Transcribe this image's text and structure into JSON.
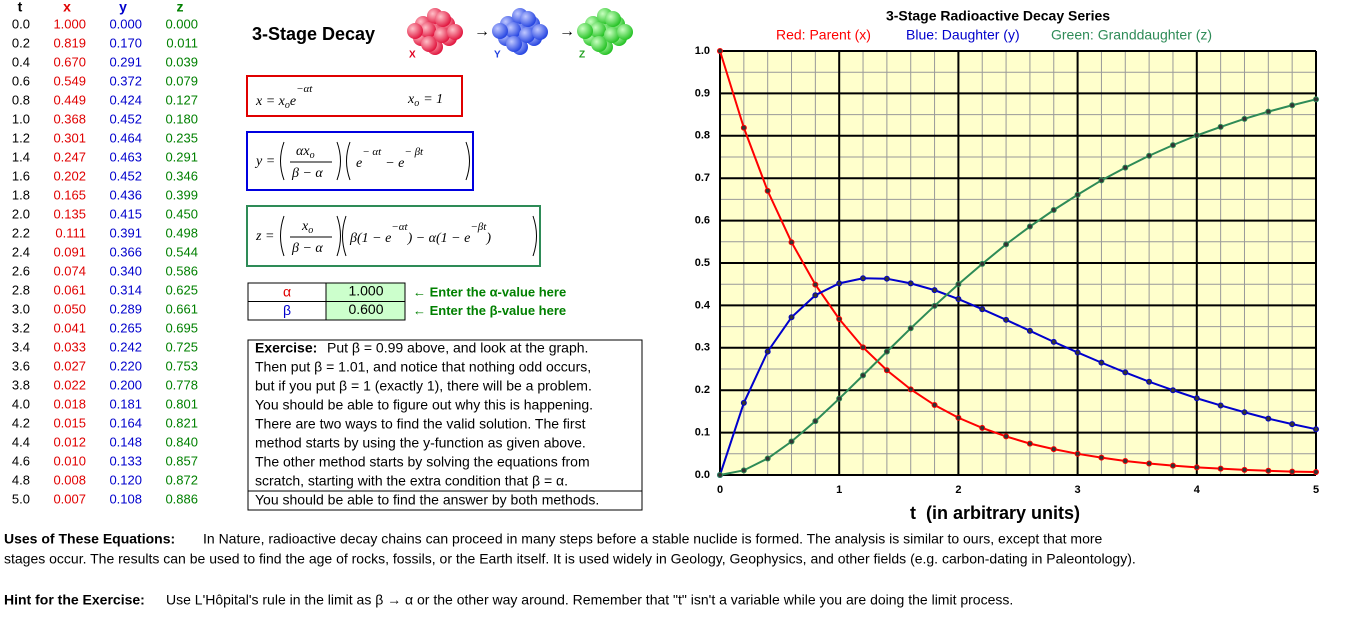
{
  "table": {
    "header": [
      "t",
      "x",
      "y",
      "z"
    ],
    "rows": [
      [
        "0.0",
        "1.000",
        "0.000",
        "0.000"
      ],
      [
        "0.2",
        "0.819",
        "0.170",
        "0.011"
      ],
      [
        "0.4",
        "0.670",
        "0.291",
        "0.039"
      ],
      [
        "0.6",
        "0.549",
        "0.372",
        "0.079"
      ],
      [
        "0.8",
        "0.449",
        "0.424",
        "0.127"
      ],
      [
        "1.0",
        "0.368",
        "0.452",
        "0.180"
      ],
      [
        "1.2",
        "0.301",
        "0.464",
        "0.235"
      ],
      [
        "1.4",
        "0.247",
        "0.463",
        "0.291"
      ],
      [
        "1.6",
        "0.202",
        "0.452",
        "0.346"
      ],
      [
        "1.8",
        "0.165",
        "0.436",
        "0.399"
      ],
      [
        "2.0",
        "0.135",
        "0.415",
        "0.450"
      ],
      [
        "2.2",
        "0.111",
        "0.391",
        "0.498"
      ],
      [
        "2.4",
        "0.091",
        "0.366",
        "0.544"
      ],
      [
        "2.6",
        "0.074",
        "0.340",
        "0.586"
      ],
      [
        "2.8",
        "0.061",
        "0.314",
        "0.625"
      ],
      [
        "3.0",
        "0.050",
        "0.289",
        "0.661"
      ],
      [
        "3.2",
        "0.041",
        "0.265",
        "0.695"
      ],
      [
        "3.4",
        "0.033",
        "0.242",
        "0.725"
      ],
      [
        "3.6",
        "0.027",
        "0.220",
        "0.753"
      ],
      [
        "3.8",
        "0.022",
        "0.200",
        "0.778"
      ],
      [
        "4.0",
        "0.018",
        "0.181",
        "0.801"
      ],
      [
        "4.2",
        "0.015",
        "0.164",
        "0.821"
      ],
      [
        "4.4",
        "0.012",
        "0.148",
        "0.840"
      ],
      [
        "4.6",
        "0.010",
        "0.133",
        "0.857"
      ],
      [
        "4.8",
        "0.008",
        "0.120",
        "0.872"
      ],
      [
        "5.0",
        "0.007",
        "0.108",
        "0.886"
      ]
    ]
  },
  "header": {
    "title": "3-Stage Decay",
    "atoms": [
      "X",
      "Y",
      "Z"
    ]
  },
  "equations": [
    {
      "parts": [
        "x = x",
        "o",
        "e",
        "−αt"
      ],
      "init": [
        "x",
        "o",
        "= 1"
      ]
    },
    {
      "lhs": "y =",
      "num": [
        "αx",
        "o"
      ],
      "den": "β − α",
      "body": [
        "e",
        "− αt",
        "− e",
        "− βt"
      ]
    },
    {
      "lhs": "z =",
      "num": [
        "x",
        "o"
      ],
      "den": "β − α",
      "body": [
        "β(1 − e",
        "−αt",
        ") − α(1 − e",
        "−βt",
        ")"
      ]
    }
  ],
  "params": [
    {
      "symbol": "α",
      "value": "1.000",
      "hint": "← Enter the α-value here"
    },
    {
      "symbol": "β",
      "value": "0.600",
      "hint": "← Enter the β-value here"
    }
  ],
  "exercise": {
    "label": "Exercise:",
    "lines": [
      "Put β = 0.99 above, and look at the graph.",
      "Then put β = 1.01, and notice that nothing odd occurs,",
      "but if you put β = 1 (exactly 1), there will be a problem.",
      "You should be able to figure out why this is happening.",
      "There are two ways to find the valid solution. The first",
      "method starts by using the y-function as given above.",
      "The other method starts by solving the equations from",
      "scratch, starting with the extra condition that β = α.",
      "You should be able to find the answer by both methods."
    ]
  },
  "uses": {
    "label": "Uses of These Equations:",
    "lines": [
      "In Nature, radioactive decay chains can proceed in many steps before a stable nuclide is formed. The analysis is similar to ours, except that more",
      "stages occur. The results can be used to find the age of rocks, fossils, or the Earth itself. It is used widely in Geology, Geophysics, and other fields (e.g. carbon-dating in Paleontology)."
    ]
  },
  "hint": {
    "label": "Hint for the Exercise:",
    "text": "Use L'Hôpital's rule in the limit as β → α or the other way around. Remember that \"t\" isn't a variable while you are doing the limit process."
  },
  "chart_data": {
    "type": "line",
    "title": "3-Stage Radioactive Decay Series",
    "x_label": "t  (in arbitrary units)",
    "x": [
      0,
      0.2,
      0.4,
      0.6,
      0.8,
      1.0,
      1.2,
      1.4,
      1.6,
      1.8,
      2.0,
      2.2,
      2.4,
      2.6,
      2.8,
      3.0,
      3.2,
      3.4,
      3.6,
      3.8,
      4.0,
      4.2,
      4.4,
      4.6,
      4.8,
      5.0
    ],
    "series": [
      {
        "name": "Red: Parent (x)",
        "color": "#ff0000",
        "values": [
          1.0,
          0.819,
          0.67,
          0.549,
          0.449,
          0.368,
          0.301,
          0.247,
          0.202,
          0.165,
          0.135,
          0.111,
          0.091,
          0.074,
          0.061,
          0.05,
          0.041,
          0.033,
          0.027,
          0.022,
          0.018,
          0.015,
          0.012,
          0.01,
          0.008,
          0.007
        ]
      },
      {
        "name": "Blue: Daughter (y)",
        "color": "#0000cc",
        "values": [
          0.0,
          0.17,
          0.291,
          0.372,
          0.424,
          0.452,
          0.464,
          0.463,
          0.452,
          0.436,
          0.415,
          0.391,
          0.366,
          0.34,
          0.314,
          0.289,
          0.265,
          0.242,
          0.22,
          0.2,
          0.181,
          0.164,
          0.148,
          0.133,
          0.12,
          0.108
        ]
      },
      {
        "name": "Green: Granddaughter (z)",
        "color": "#2e8b57",
        "values": [
          0.0,
          0.011,
          0.039,
          0.079,
          0.127,
          0.18,
          0.235,
          0.291,
          0.346,
          0.399,
          0.45,
          0.498,
          0.544,
          0.586,
          0.625,
          0.661,
          0.695,
          0.725,
          0.753,
          0.778,
          0.801,
          0.821,
          0.84,
          0.857,
          0.872,
          0.886
        ]
      }
    ],
    "xlim": [
      0,
      5
    ],
    "xticks": [
      0,
      1,
      2,
      3,
      4,
      5
    ],
    "ylim": [
      0,
      1
    ],
    "yticks": [
      {
        "value": 0,
        "label": "0.0"
      },
      {
        "value": 0.1,
        "label": "0.1"
      },
      {
        "value": 0.2,
        "label": "0.2"
      },
      {
        "value": 0.3,
        "label": "0.3"
      },
      {
        "value": 0.4,
        "label": "0.4"
      },
      {
        "value": 0.5,
        "label": "0.5"
      },
      {
        "value": 0.6,
        "label": "0.6"
      },
      {
        "value": 0.7,
        "label": "0.7"
      },
      {
        "value": 0.8,
        "label": "0.8"
      },
      {
        "value": 0.9,
        "label": "0.9"
      },
      {
        "value": 1,
        "label": "1.0"
      }
    ],
    "grid": true,
    "background": "#ffffcc"
  }
}
